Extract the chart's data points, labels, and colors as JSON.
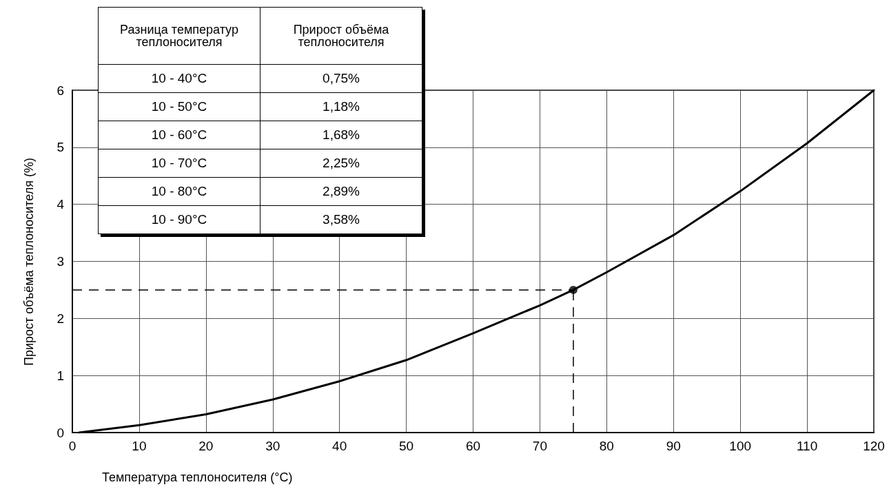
{
  "chart_data": {
    "type": "line",
    "xlabel": "Температура теплоносителя (°C)",
    "ylabel": "Прирост объёма теплоносителя (%)",
    "series": [
      {
        "color": "#000000",
        "x": [
          1,
          10,
          20,
          30,
          40,
          50,
          60,
          70,
          75,
          80,
          90,
          100,
          110,
          120
        ],
        "values": [
          0,
          0.13,
          0.32,
          0.58,
          0.9,
          1.27,
          1.74,
          2.23,
          2.5,
          2.81,
          3.46,
          4.23,
          5.07,
          6.0
        ],
        "marker": "none"
      },
      {
        "type": "scatter",
        "color": "#000000",
        "x": [
          75
        ],
        "values": [
          2.5
        ],
        "marker": "circle"
      }
    ],
    "ref_lines": [
      {
        "axis": "y",
        "value": 2.5,
        "color": "#000000",
        "line_style": "dashed"
      },
      {
        "axis": "x",
        "value": 75,
        "color": "#000000",
        "line_style": "dashed"
      }
    ],
    "annotations": [
      "Разница температур\nтеплоносителя",
      "Прирост объёма\nтеплоносителя",
      "10 - 40°C",
      "0,75%",
      "10 - 50°C",
      "1,18%",
      "10 - 60°C",
      "1,68%",
      "10 - 70°C",
      "2,25%",
      "10 - 80°C",
      "2,89%",
      "10 - 90°C",
      "3,58%"
    ],
    "xlim": [
      0,
      120
    ],
    "xticks": [
      0,
      10,
      20,
      30,
      40,
      50,
      60,
      70,
      80,
      90,
      100,
      110,
      120
    ],
    "ylim": [
      0,
      6
    ],
    "yticks": [
      0,
      1,
      2,
      3,
      4,
      5,
      6
    ],
    "grid": true
  }
}
